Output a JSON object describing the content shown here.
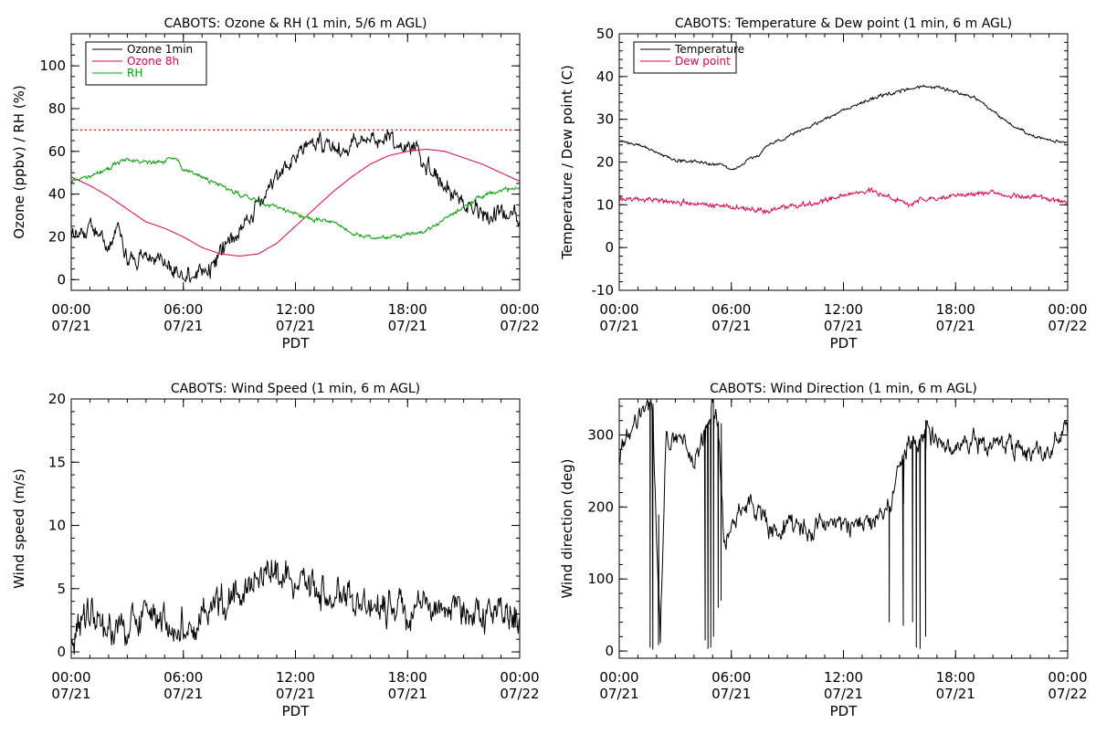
{
  "chart_data": [
    {
      "type": "line",
      "title": "CABOTS: Ozone & RH (1 min, 5/6 m AGL)",
      "xlabel": "PDT",
      "ylabel": "Ozone (ppbv) / RH (%)",
      "xlim": [
        0,
        24
      ],
      "ylim": [
        -5,
        115
      ],
      "x_ticks": [
        {
          "t": 0,
          "time": "00:00",
          "date": "07/21"
        },
        {
          "t": 6,
          "time": "06:00",
          "date": "07/21"
        },
        {
          "t": 12,
          "time": "12:00",
          "date": "07/21"
        },
        {
          "t": 18,
          "time": "18:00",
          "date": "07/21"
        },
        {
          "t": 24,
          "time": "00:00",
          "date": "07/22"
        }
      ],
      "y_ticks": [
        0,
        20,
        40,
        60,
        80,
        100
      ],
      "x_minor": 1,
      "y_minor": 5,
      "grid": false,
      "legend_position": "top-left",
      "reference_line": {
        "y": 70,
        "color": "#ff0000",
        "style": "dotted"
      },
      "series": [
        {
          "name": "Ozone 1min",
          "color": "#000000",
          "noise": 3.5,
          "x": [
            0,
            0.5,
            1,
            1.5,
            2,
            2.5,
            3,
            3.5,
            4,
            4.5,
            5,
            5.5,
            6,
            6.5,
            7,
            7.5,
            8,
            8.5,
            9,
            9.5,
            10,
            10.5,
            11,
            11.5,
            12,
            12.5,
            13,
            13.5,
            14,
            14.5,
            15,
            15.5,
            16,
            16.5,
            17,
            17.5,
            18,
            18.5,
            19,
            19.5,
            20,
            20.5,
            21,
            21.5,
            22,
            22.5,
            23,
            23.5,
            24
          ],
          "values": [
            22,
            20,
            26,
            20,
            18,
            20,
            12,
            11,
            12,
            10,
            9,
            4,
            2,
            1,
            3,
            6,
            12,
            18,
            23,
            28,
            35,
            40,
            48,
            53,
            58,
            63,
            65,
            64,
            62,
            61,
            63,
            66,
            68,
            68,
            66,
            64,
            63,
            59,
            55,
            49,
            43,
            40,
            38,
            35,
            32,
            31,
            31,
            30,
            28
          ]
        },
        {
          "name": "Ozone 8h",
          "color": "#e0004c",
          "noise": 0,
          "x": [
            0,
            1,
            2,
            3,
            4,
            5,
            6,
            7,
            8,
            9,
            10,
            11,
            12,
            13,
            14,
            15,
            16,
            17,
            18,
            19,
            20,
            21,
            22,
            23,
            24
          ],
          "values": [
            48,
            44,
            39,
            33,
            27,
            24,
            20,
            15,
            12,
            11,
            12,
            17,
            25,
            33,
            41,
            48,
            54,
            58,
            60,
            61,
            60,
            57,
            54,
            50,
            46
          ]
        },
        {
          "name": "RH",
          "color": "#00a000",
          "noise": 0.8,
          "x": [
            0,
            1,
            2,
            2.5,
            3,
            4,
            5,
            5.5,
            6,
            7,
            8,
            9,
            10,
            11,
            12,
            13,
            14,
            15,
            16,
            17,
            18,
            19,
            20,
            21,
            22,
            23,
            24
          ],
          "values": [
            46,
            48,
            52,
            55,
            56,
            55,
            55,
            58,
            52,
            48,
            44,
            40,
            36,
            34,
            31,
            28,
            27,
            22,
            20,
            20,
            21,
            23,
            28,
            34,
            39,
            42,
            43
          ]
        }
      ]
    },
    {
      "type": "line",
      "title": "CABOTS: Temperature & Dew point (1 min, 6 m AGL)",
      "xlabel": "PDT",
      "ylabel": "Temperature / Dew point (C)",
      "xlim": [
        0,
        24
      ],
      "ylim": [
        -10,
        50
      ],
      "x_ticks": [
        {
          "t": 0,
          "time": "00:00",
          "date": "07/21"
        },
        {
          "t": 6,
          "time": "06:00",
          "date": "07/21"
        },
        {
          "t": 12,
          "time": "12:00",
          "date": "07/21"
        },
        {
          "t": 18,
          "time": "18:00",
          "date": "07/21"
        },
        {
          "t": 24,
          "time": "00:00",
          "date": "07/22"
        }
      ],
      "y_ticks": [
        -10,
        0,
        10,
        20,
        30,
        40,
        50
      ],
      "x_minor": 1,
      "y_minor": 2,
      "grid": false,
      "legend_position": "top-left",
      "series": [
        {
          "name": "Temperature",
          "color": "#000000",
          "noise": 0.3,
          "x": [
            0,
            1,
            2,
            3,
            4,
            5,
            5.5,
            6,
            6.5,
            7,
            7.5,
            8,
            9,
            10,
            11,
            12,
            13,
            14,
            15,
            16,
            17,
            18,
            19,
            20,
            21,
            22,
            23,
            24
          ],
          "values": [
            25,
            24,
            22.5,
            20.5,
            20,
            19.5,
            19.5,
            18,
            19,
            21,
            21.5,
            24,
            26,
            28,
            30,
            32,
            34,
            35.5,
            36.5,
            37.5,
            37.5,
            36.5,
            35,
            32,
            28.5,
            26.5,
            25,
            24.5
          ]
        },
        {
          "name": "Dew point",
          "color": "#e0004c",
          "noise": 0.5,
          "x": [
            0,
            2,
            4,
            6,
            7,
            8,
            9,
            10,
            11,
            12,
            13,
            13.5,
            14,
            15,
            15.5,
            16,
            17,
            18,
            19,
            20,
            21,
            22,
            23,
            24
          ],
          "values": [
            11.5,
            11,
            10.5,
            9.5,
            9,
            8.5,
            9.5,
            10,
            11,
            12,
            13,
            13.5,
            12,
            11,
            10,
            11,
            11.5,
            12,
            12.5,
            13,
            12,
            12,
            11.5,
            10.5
          ]
        }
      ]
    },
    {
      "type": "line",
      "title": "CABOTS: Wind Speed (1 min, 6 m AGL)",
      "xlabel": "PDT",
      "ylabel": "Wind speed (m/s)",
      "xlim": [
        0,
        24
      ],
      "ylim": [
        -0.5,
        20
      ],
      "x_ticks": [
        {
          "t": 0,
          "time": "00:00",
          "date": "07/21"
        },
        {
          "t": 6,
          "time": "06:00",
          "date": "07/21"
        },
        {
          "t": 12,
          "time": "12:00",
          "date": "07/21"
        },
        {
          "t": 18,
          "time": "18:00",
          "date": "07/21"
        },
        {
          "t": 24,
          "time": "00:00",
          "date": "07/22"
        }
      ],
      "y_ticks": [
        0,
        5,
        10,
        15,
        20
      ],
      "x_minor": 1,
      "y_minor": 1,
      "grid": false,
      "series": [
        {
          "name": "",
          "color": "#000000",
          "noise": 1.2,
          "x": [
            0,
            1,
            2,
            3,
            4,
            5,
            5.5,
            6,
            7,
            8,
            9,
            10,
            11,
            12,
            13,
            14,
            15,
            16,
            17,
            18,
            19,
            20,
            21,
            22,
            23,
            24
          ],
          "values": [
            2,
            2.5,
            1.8,
            2.5,
            3,
            2,
            1,
            2,
            3,
            4,
            5,
            6,
            6.5,
            6,
            5.5,
            5,
            4,
            3.5,
            3.5,
            4,
            3.8,
            3.5,
            3.2,
            3,
            3.2,
            3
          ]
        }
      ]
    },
    {
      "type": "line",
      "title": "CABOTS: Wind Direction (1 min, 6 m AGL)",
      "xlabel": "PDT",
      "ylabel": "Wind direction (deg)",
      "xlim": [
        0,
        24
      ],
      "ylim": [
        -10,
        350
      ],
      "x_ticks": [
        {
          "t": 0,
          "time": "00:00",
          "date": "07/21"
        },
        {
          "t": 6,
          "time": "06:00",
          "date": "07/21"
        },
        {
          "t": 12,
          "time": "12:00",
          "date": "07/21"
        },
        {
          "t": 18,
          "time": "18:00",
          "date": "07/21"
        },
        {
          "t": 24,
          "time": "00:00",
          "date": "07/22"
        }
      ],
      "y_ticks": [
        0,
        100,
        200,
        300
      ],
      "x_minor": 1,
      "y_minor": 20,
      "grid": false,
      "series": [
        {
          "name": "",
          "color": "#000000",
          "noise": 12,
          "x": [
            0,
            0.5,
            1,
            1.5,
            1.8,
            2,
            2.2,
            2.5,
            3,
            3.5,
            4,
            4.5,
            5,
            5.3,
            5.6,
            6,
            6.5,
            7,
            7.5,
            8,
            9,
            10,
            11,
            12,
            13,
            14,
            14.5,
            15,
            15.5,
            16,
            16.5,
            17,
            18,
            19,
            20,
            21,
            22,
            23,
            23.5,
            24
          ],
          "values": [
            270,
            300,
            320,
            335,
            340,
            150,
            10,
            290,
            300,
            290,
            260,
            300,
            340,
            320,
            150,
            175,
            195,
            210,
            190,
            170,
            175,
            170,
            180,
            175,
            180,
            190,
            200,
            260,
            290,
            300,
            310,
            290,
            285,
            290,
            290,
            285,
            275,
            275,
            300,
            300
          ]
        }
      ],
      "spikes": [
        {
          "x": 1.65,
          "y": 5
        },
        {
          "x": 1.8,
          "y": 2
        },
        {
          "x": 2.1,
          "y": 8
        },
        {
          "x": 4.6,
          "y": 15
        },
        {
          "x": 4.75,
          "y": 3
        },
        {
          "x": 4.9,
          "y": 5
        },
        {
          "x": 5.05,
          "y": 20
        },
        {
          "x": 5.3,
          "y": 60
        },
        {
          "x": 5.45,
          "y": 70
        },
        {
          "x": 14.45,
          "y": 40
        },
        {
          "x": 15.2,
          "y": 35
        },
        {
          "x": 15.7,
          "y": 40
        },
        {
          "x": 15.9,
          "y": 5
        },
        {
          "x": 16.1,
          "y": 3
        },
        {
          "x": 16.4,
          "y": 20
        }
      ]
    }
  ]
}
